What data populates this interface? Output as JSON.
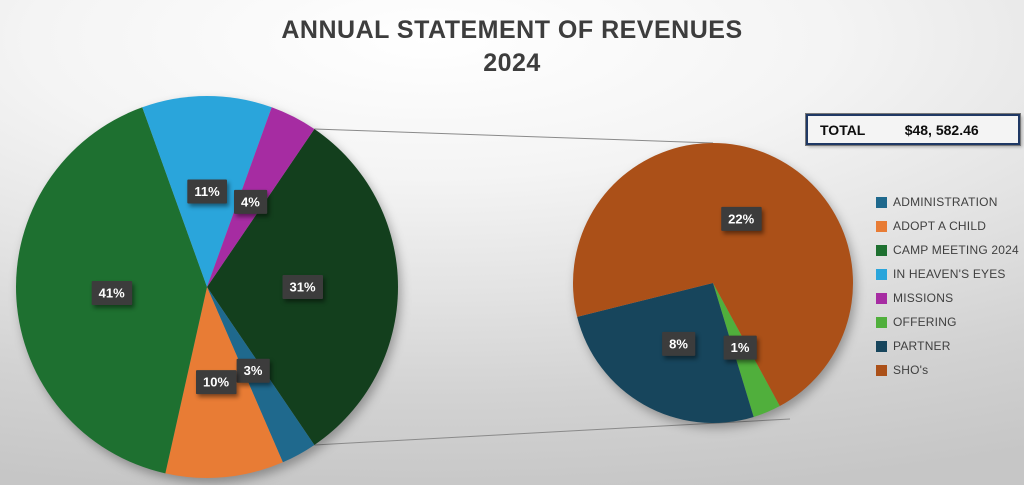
{
  "slide": {
    "title_line1": "ANNUAL STATEMENT OF REVENUES",
    "title_line2": "2024"
  },
  "total_box": {
    "label": "TOTAL",
    "value": "$48, 582.46"
  },
  "legend": {
    "position": "right",
    "entries": [
      {
        "label": "ADMINISTRATION",
        "color": "#1f698d"
      },
      {
        "label": "ADOPT A CHILD",
        "color": "#e87c35"
      },
      {
        "label": "CAMP MEETING 2024",
        "color": "#1e7030"
      },
      {
        "label": "IN HEAVEN'S EYES",
        "color": "#2aa5db"
      },
      {
        "label": "MISSIONS",
        "color": "#a62ca2"
      },
      {
        "label": "OFFERING",
        "color": "#50af3c"
      },
      {
        "label": "PARTNER",
        "color": "#17455c"
      },
      {
        "label": "SHO's",
        "color": "#ab5018"
      }
    ]
  },
  "chart_data": {
    "type": "pie",
    "variant": "pie-of-pie",
    "title": "ANNUAL STATEMENT OF REVENUES 2024",
    "total_shown": "$48, 582.46",
    "legend_position": "right",
    "categories": [
      "ADMINISTRATION",
      "ADOPT A CHILD",
      "CAMP MEETING 2024",
      "IN HEAVEN'S EYES",
      "MISSIONS",
      "OFFERING",
      "PARTNER",
      "SHO's"
    ],
    "values_percent": [
      3,
      10,
      41,
      11,
      4,
      1,
      8,
      22
    ],
    "main_pie": {
      "start_angle_deg": 34.2,
      "slices": [
        {
          "name": "OTHER (grouped: OFFERING + PARTNER + SHO's)",
          "value": 31,
          "label": "31%",
          "color": "#133f1d"
        },
        {
          "name": "ADMINISTRATION",
          "value": 3,
          "label": "3%",
          "color": "#1f698d"
        },
        {
          "name": "ADOPT A CHILD",
          "value": 10,
          "label": "10%",
          "color": "#e87c35"
        },
        {
          "name": "CAMP MEETING 2024",
          "value": 41,
          "label": "41%",
          "color": "#1e7030"
        },
        {
          "name": "IN HEAVEN'S EYES",
          "value": 11,
          "label": "11%",
          "color": "#2aa5db"
        },
        {
          "name": "MISSIONS",
          "value": 4,
          "label": "4%",
          "color": "#a62ca2"
        }
      ]
    },
    "secondary_pie": {
      "start_angle_deg": 151.5,
      "slices": [
        {
          "name": "OFFERING",
          "value": 1,
          "label": "1%",
          "color": "#50af3c"
        },
        {
          "name": "PARTNER",
          "value": 8,
          "label": "8%",
          "color": "#17455c"
        },
        {
          "name": "SHO's",
          "value": 22,
          "label": "22%",
          "color": "#ab5018"
        }
      ]
    }
  }
}
